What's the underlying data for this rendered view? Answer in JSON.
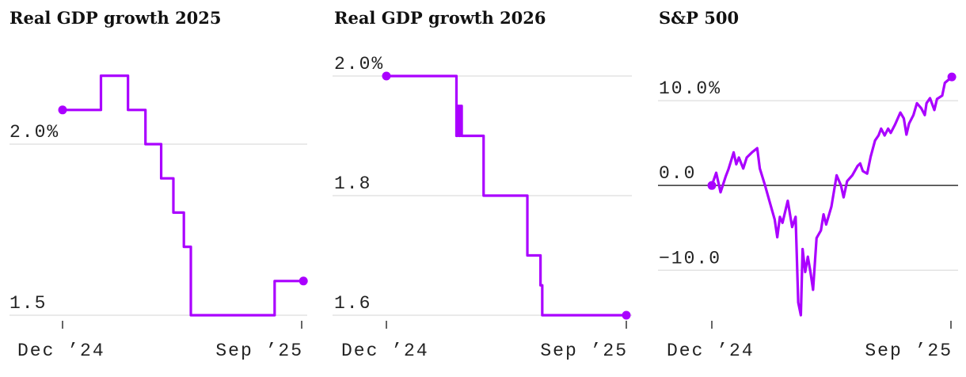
{
  "colors": {
    "line": "#aa00ff",
    "grid": "#e3e3e3",
    "zero": "#333333",
    "text": "#222222"
  },
  "chart_data": [
    {
      "type": "line",
      "title": "Real GDP growth 2025",
      "interpolation": "step-after",
      "xticks": [
        {
          "date": "2024-12-01",
          "label": "Dec ’24"
        },
        {
          "date": "2025-09-01",
          "label": "Sep ’25"
        }
      ],
      "yticks": [
        {
          "value": 2.0,
          "label": "2.0%"
        },
        {
          "value": 1.5,
          "label": "1.5"
        }
      ],
      "ylim": [
        1.5,
        2.25
      ],
      "grid": true,
      "points": [
        [
          "2024-12-01",
          2.1
        ],
        [
          "2025-01-14",
          2.2
        ],
        [
          "2025-02-14",
          2.1
        ],
        [
          "2025-03-06",
          2.0
        ],
        [
          "2025-03-24",
          1.9
        ],
        [
          "2025-04-07",
          1.8
        ],
        [
          "2025-04-19",
          1.7
        ],
        [
          "2025-04-27",
          1.5
        ],
        [
          "2025-08-01",
          1.6
        ],
        [
          "2025-09-03",
          1.6
        ]
      ]
    },
    {
      "type": "line",
      "title": "Real GDP growth 2026",
      "interpolation": "step-after",
      "xticks": [
        {
          "date": "2024-12-01",
          "label": "Dec ’24"
        },
        {
          "date": "2025-09-01",
          "label": "Sep ’25"
        }
      ],
      "yticks": [
        {
          "value": 2.0,
          "label": "2.0%"
        },
        {
          "value": 1.8,
          "label": "1.8"
        },
        {
          "value": 1.6,
          "label": "1.6"
        }
      ],
      "ylim": [
        1.6,
        2.0
      ],
      "grid": true,
      "points": [
        [
          "2024-12-01",
          2.0
        ],
        [
          "2025-02-19",
          1.9
        ],
        [
          "2025-02-20",
          1.95
        ],
        [
          "2025-02-22",
          1.9
        ],
        [
          "2025-02-23",
          1.95
        ],
        [
          "2025-02-25",
          1.9
        ],
        [
          "2025-03-22",
          1.8
        ],
        [
          "2025-05-11",
          1.7
        ],
        [
          "2025-05-26",
          1.65
        ],
        [
          "2025-05-28",
          1.6
        ],
        [
          "2025-09-01",
          1.6
        ]
      ]
    },
    {
      "type": "line",
      "title": "S&P 500",
      "interpolation": "linear",
      "xticks": [
        {
          "date": "2024-12-01",
          "label": "Dec ’24"
        },
        {
          "date": "2025-09-01",
          "label": "Sep ’25"
        }
      ],
      "yticks": [
        {
          "value": 10,
          "label": "10.0%"
        },
        {
          "value": 0,
          "label": "0.0"
        },
        {
          "value": -10,
          "label": "−10.0"
        }
      ],
      "ylim": [
        -15.3,
        13
      ],
      "grid": true,
      "zero_line": true,
      "points": [
        [
          "2024-12-01",
          0.0
        ],
        [
          "2024-12-06",
          1.5
        ],
        [
          "2024-12-11",
          -0.8
        ],
        [
          "2024-12-17",
          1.1
        ],
        [
          "2024-12-20",
          1.9
        ],
        [
          "2024-12-26",
          3.9
        ],
        [
          "2024-12-29",
          2.5
        ],
        [
          "2025-01-01",
          3.3
        ],
        [
          "2025-01-06",
          2.0
        ],
        [
          "2025-01-10",
          3.3
        ],
        [
          "2025-01-16",
          3.9
        ],
        [
          "2025-01-22",
          4.4
        ],
        [
          "2025-01-25",
          2.0
        ],
        [
          "2025-01-31",
          0.0
        ],
        [
          "2025-02-06",
          -2.2
        ],
        [
          "2025-02-11",
          -4.0
        ],
        [
          "2025-02-14",
          -6.1
        ],
        [
          "2025-02-17",
          -3.7
        ],
        [
          "2025-02-20",
          -4.4
        ],
        [
          "2025-02-26",
          -1.8
        ],
        [
          "2025-03-03",
          -4.9
        ],
        [
          "2025-03-07",
          -3.7
        ],
        [
          "2025-03-10",
          -13.8
        ],
        [
          "2025-03-13",
          -15.3
        ],
        [
          "2025-03-15",
          -7.5
        ],
        [
          "2025-03-18",
          -10.2
        ],
        [
          "2025-03-21",
          -8.4
        ],
        [
          "2025-03-24",
          -10.2
        ],
        [
          "2025-03-27",
          -12.3
        ],
        [
          "2025-03-31",
          -6.2
        ],
        [
          "2025-04-05",
          -5.3
        ],
        [
          "2025-04-08",
          -3.4
        ],
        [
          "2025-04-11",
          -4.6
        ],
        [
          "2025-04-17",
          -2.5
        ],
        [
          "2025-04-23",
          1.2
        ],
        [
          "2025-04-28",
          0.0
        ],
        [
          "2025-05-01",
          -1.4
        ],
        [
          "2025-05-05",
          0.5
        ],
        [
          "2025-05-11",
          1.2
        ],
        [
          "2025-05-17",
          2.3
        ],
        [
          "2025-05-20",
          2.6
        ],
        [
          "2025-05-23",
          1.7
        ],
        [
          "2025-05-28",
          1.4
        ],
        [
          "2025-06-01",
          3.4
        ],
        [
          "2025-06-06",
          5.3
        ],
        [
          "2025-06-10",
          5.9
        ],
        [
          "2025-06-13",
          6.7
        ],
        [
          "2025-06-17",
          5.9
        ],
        [
          "2025-06-21",
          6.7
        ],
        [
          "2025-06-24",
          6.2
        ],
        [
          "2025-06-29",
          7.2
        ],
        [
          "2025-07-05",
          8.6
        ],
        [
          "2025-07-09",
          7.9
        ],
        [
          "2025-07-12",
          6.0
        ],
        [
          "2025-07-15",
          7.3
        ],
        [
          "2025-07-20",
          8.3
        ],
        [
          "2025-07-24",
          9.7
        ],
        [
          "2025-07-29",
          9.1
        ],
        [
          "2025-08-02",
          8.3
        ],
        [
          "2025-08-04",
          9.7
        ],
        [
          "2025-08-08",
          10.3
        ],
        [
          "2025-08-13",
          8.9
        ],
        [
          "2025-08-16",
          10.2
        ],
        [
          "2025-08-22",
          10.6
        ],
        [
          "2025-08-25",
          12.1
        ],
        [
          "2025-09-02",
          12.8
        ]
      ]
    }
  ]
}
